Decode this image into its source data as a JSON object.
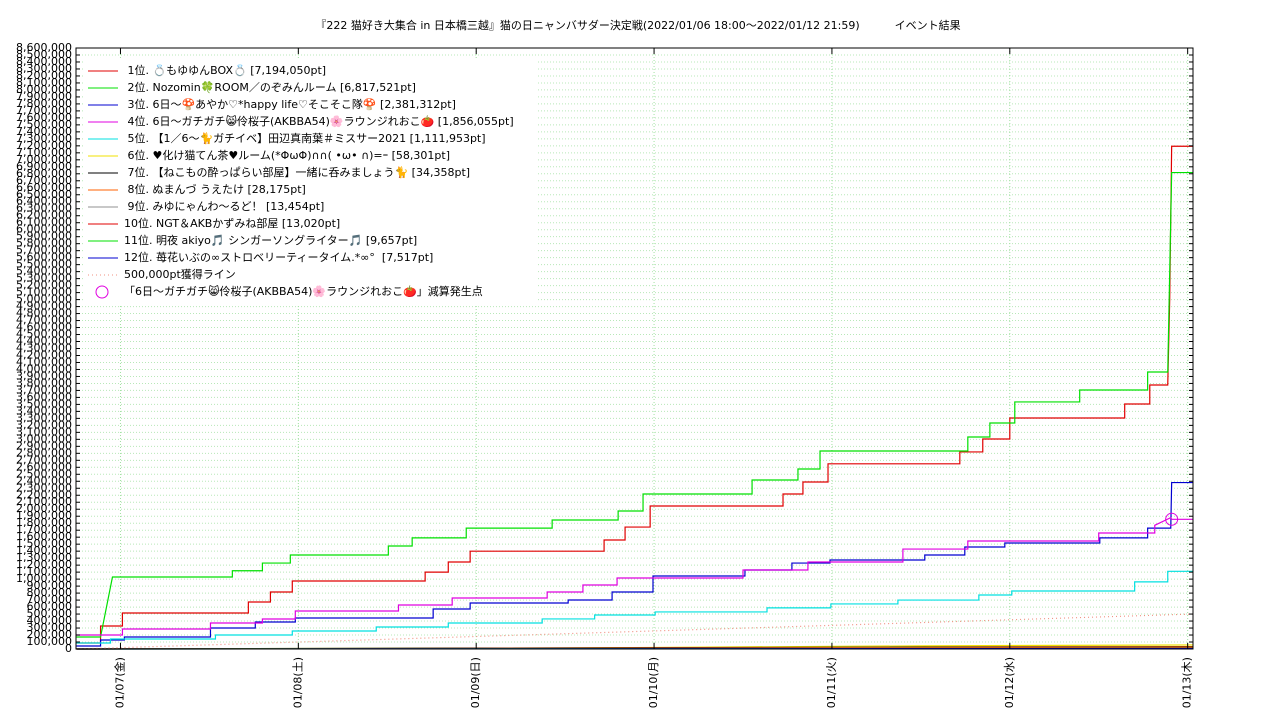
{
  "chart_data": {
    "type": "line",
    "title": "『222 猫好き大集合 in 日本橋三越』猫の日ニャンバサダー決定戦(2022/01/06 18:00～2022/01/12 21:59)          イベント結果",
    "xlim": [
      6.75,
      13.03
    ],
    "xticks": [
      {
        "value": 7,
        "label": "01/07(金)"
      },
      {
        "value": 8,
        "label": "01/08(土)"
      },
      {
        "value": 9,
        "label": "01/09(日)"
      },
      {
        "value": 10,
        "label": "01/10(月)"
      },
      {
        "value": 11,
        "label": "01/11(火)"
      },
      {
        "value": 12,
        "label": "01/12(水)"
      },
      {
        "value": 13,
        "label": "01/13(木)"
      }
    ],
    "ylim": [
      0,
      8600000
    ],
    "yticks": [
      0,
      {
        "value": 100000,
        "label": "100,000"
      },
      {
        "value": 200000,
        "label": "200,000"
      },
      {
        "value": 300000,
        "label": "300,000"
      },
      {
        "value": 400000,
        "label": "400,000"
      },
      {
        "value": 500000,
        "label": "500,000"
      },
      {
        "value": 600000,
        "label": "600,000"
      },
      {
        "value": 700000,
        "label": "700,000"
      },
      {
        "value": 800000,
        "label": "800,000"
      },
      {
        "value": 900000,
        "label": "900,000"
      },
      {
        "value": 1000000,
        "label": "1,000,000"
      },
      {
        "value": 1100000,
        "label": "1,100,000"
      },
      {
        "value": 1200000,
        "label": "1,200,000"
      },
      {
        "value": 1300000,
        "label": "1,300,000"
      },
      {
        "value": 1400000,
        "label": "1,400,000"
      },
      {
        "value": 1500000,
        "label": "1,500,000"
      },
      {
        "value": 1600000,
        "label": "1,600,000"
      },
      {
        "value": 1700000,
        "label": "1,700,000"
      },
      {
        "value": 1800000,
        "label": "1,800,000"
      },
      {
        "value": 1900000,
        "label": "1,900,000"
      },
      {
        "value": 2000000,
        "label": "2,000,000"
      },
      {
        "value": 2100000,
        "label": "2,100,000"
      },
      {
        "value": 2200000,
        "label": "2,200,000"
      },
      {
        "value": 2300000,
        "label": "2,300,000"
      },
      {
        "value": 2400000,
        "label": "2,400,000"
      },
      {
        "value": 2500000,
        "label": "2,500,000"
      },
      {
        "value": 2600000,
        "label": "2,600,000"
      },
      {
        "value": 2700000,
        "label": "2,700,000"
      },
      {
        "value": 2800000,
        "label": "2,800,000"
      },
      {
        "value": 2900000,
        "label": "2,900,000"
      },
      {
        "value": 3000000,
        "label": "3,000,000"
      },
      {
        "value": 3100000,
        "label": "3,100,000"
      },
      {
        "value": 3200000,
        "label": "3,200,000"
      },
      {
        "value": 3300000,
        "label": "3,300,000"
      },
      {
        "value": 3400000,
        "label": "3,400,000"
      },
      {
        "value": 3500000,
        "label": "3,500,000"
      },
      {
        "value": 3600000,
        "label": "3,600,000"
      },
      {
        "value": 3700000,
        "label": "3,700,000"
      },
      {
        "value": 3800000,
        "label": "3,800,000"
      },
      {
        "value": 3900000,
        "label": "3,900,000"
      },
      {
        "value": 4000000,
        "label": "4,000,000"
      },
      {
        "value": 4100000,
        "label": "4,100,000"
      },
      {
        "value": 4200000,
        "label": "4,200,000"
      },
      {
        "value": 4300000,
        "label": "4,300,000"
      },
      {
        "value": 4400000,
        "label": "4,400,000"
      },
      {
        "value": 4500000,
        "label": "4,500,000"
      },
      {
        "value": 4600000,
        "label": "4,600,000"
      },
      {
        "value": 4700000,
        "label": "4,700,000"
      },
      {
        "value": 4800000,
        "label": "4,800,000"
      },
      {
        "value": 4900000,
        "label": "4,900,000"
      },
      {
        "value": 5000000,
        "label": "5,000,000"
      },
      {
        "value": 5100000,
        "label": "5,100,000"
      },
      {
        "value": 5200000,
        "label": "5,200,000"
      },
      {
        "value": 5300000,
        "label": "5,300,000"
      },
      {
        "value": 5400000,
        "label": "5,400,000"
      },
      {
        "value": 5500000,
        "label": "5,500,000"
      },
      {
        "value": 5600000,
        "label": "5,600,000"
      },
      {
        "value": 5700000,
        "label": "5,700,000"
      },
      {
        "value": 5800000,
        "label": "5,800,000"
      },
      {
        "value": 5900000,
        "label": "5,900,000"
      },
      {
        "value": 6000000,
        "label": "6,000,000"
      },
      {
        "value": 6100000,
        "label": "6,100,000"
      },
      {
        "value": 6200000,
        "label": "6,200,000"
      },
      {
        "value": 6300000,
        "label": "6,300,000"
      },
      {
        "value": 6400000,
        "label": "6,400,000"
      },
      {
        "value": 6500000,
        "label": "6,500,000"
      },
      {
        "value": 6600000,
        "label": "6,600,000"
      },
      {
        "value": 6700000,
        "label": "6,700,000"
      },
      {
        "value": 6800000,
        "label": "6,800,000"
      },
      {
        "value": 6900000,
        "label": "6,900,000"
      },
      {
        "value": 7000000,
        "label": "7,000,000"
      },
      {
        "value": 7100000,
        "label": "7,100,000"
      },
      {
        "value": 7200000,
        "label": "7,200,000"
      },
      {
        "value": 7300000,
        "label": "7,300,000"
      },
      {
        "value": 7400000,
        "label": "7,400,000"
      },
      {
        "value": 7500000,
        "label": "7,500,000"
      },
      {
        "value": 7600000,
        "label": "7,600,000"
      },
      {
        "value": 7700000,
        "label": "7,700,000"
      },
      {
        "value": 7800000,
        "label": "7,800,000"
      },
      {
        "value": 7900000,
        "label": "7,900,000"
      },
      {
        "value": 8000000,
        "label": "8,000,000"
      },
      {
        "value": 8100000,
        "label": "8,100,000"
      },
      {
        "value": 8200000,
        "label": "8,200,000"
      },
      {
        "value": 8300000,
        "label": "8,300,000"
      },
      {
        "value": 8400000,
        "label": "8,400,000"
      },
      {
        "value": 8500000,
        "label": "8,500,000"
      },
      {
        "value": 8600000,
        "label": "8,600,000"
      }
    ],
    "grid": true,
    "legend": "top-left",
    "series": [
      {
        "name": " 1位. 💍もゆゆんBOX💍 [7,194,050pt]",
        "color": "#e00000",
        "x": [
          6.753,
          6.888,
          6.888,
          7.011,
          7.011,
          7.719,
          7.719,
          7.843,
          7.843,
          7.966,
          7.966,
          8.713,
          8.713,
          8.843,
          8.843,
          8.966,
          8.966,
          9.719,
          9.719,
          9.837,
          9.837,
          9.978,
          9.978,
          10.725,
          10.725,
          10.837,
          10.837,
          10.978,
          10.978,
          11.719,
          11.719,
          11.848,
          11.848,
          12.0,
          12.0,
          12.646,
          12.646,
          12.787,
          12.787,
          12.888,
          12.899,
          12.91,
          13.028
        ],
        "values": [
          86000,
          86000,
          329000,
          329000,
          515000,
          515000,
          673000,
          673000,
          816000,
          816000,
          973000,
          973000,
          1100000,
          1100000,
          1245000,
          1245000,
          1400000,
          1400000,
          1560000,
          1560000,
          1745000,
          1745000,
          2046000,
          2046000,
          2218000,
          2218000,
          2390000,
          2390000,
          2650000,
          2650000,
          2820000,
          2820000,
          3005000,
          3005000,
          3306000,
          3306000,
          3506000,
          3506000,
          3778000,
          3778000,
          4994000,
          7194050,
          7194050
        ]
      },
      {
        "name": " 2位. Nozomin🍀ROOM／のぞみんルーム [6,817,521pt]",
        "color": "#00e000",
        "x": [
          6.753,
          6.888,
          6.955,
          7.629,
          7.629,
          7.798,
          7.798,
          7.955,
          7.955,
          8.506,
          8.506,
          8.64,
          8.64,
          8.944,
          8.944,
          9.427,
          9.427,
          9.798,
          9.798,
          9.938,
          9.938,
          10.551,
          10.551,
          10.809,
          10.809,
          10.933,
          10.933,
          11.764,
          11.764,
          11.888,
          11.888,
          12.028,
          12.028,
          12.393,
          12.393,
          12.775,
          12.775,
          12.888,
          12.91,
          13.028
        ],
        "values": [
          172000,
          172000,
          1030000,
          1030000,
          1120000,
          1120000,
          1230000,
          1230000,
          1345000,
          1345000,
          1474000,
          1474000,
          1590000,
          1590000,
          1730000,
          1730000,
          1846000,
          1846000,
          1975000,
          1975000,
          2218000,
          2218000,
          2418000,
          2418000,
          2576000,
          2576000,
          2833000,
          2833000,
          3034000,
          3034000,
          3234000,
          3234000,
          3535000,
          3535000,
          3706000,
          3706000,
          3964000,
          3964000,
          6817521,
          6817521
        ]
      },
      {
        "name": " 3位. 6日〜🍄あやか♡*happy life♡そこそこ隊🍄 [2,381,312pt]",
        "color": "#0000d0",
        "x": [
          6.753,
          6.888,
          6.888,
          7.022,
          7.022,
          7.506,
          7.506,
          7.758,
          7.758,
          7.983,
          7.983,
          8.758,
          8.758,
          8.966,
          8.966,
          9.517,
          9.517,
          9.764,
          9.764,
          9.994,
          9.994,
          10.511,
          10.511,
          10.775,
          10.775,
          10.989,
          10.989,
          11.522,
          11.522,
          11.747,
          11.747,
          11.972,
          11.972,
          12.506,
          12.506,
          12.775,
          12.775,
          12.905,
          12.91,
          13.028
        ],
        "values": [
          43000,
          43000,
          129000,
          129000,
          172000,
          172000,
          300000,
          300000,
          386000,
          386000,
          444000,
          444000,
          572000,
          572000,
          658000,
          658000,
          701000,
          701000,
          816000,
          816000,
          1045000,
          1045000,
          1130000,
          1130000,
          1230000,
          1230000,
          1274000,
          1274000,
          1345000,
          1345000,
          1460000,
          1460000,
          1517000,
          1517000,
          1590000,
          1590000,
          1730000,
          1730000,
          2381312,
          2381312
        ]
      },
      {
        "name": " 4位. 6日〜ガチガチ😸伶桜子(AKBBA54)🌸ラウンジれおこ🍅 [1,856,055pt]",
        "color": "#e000e0",
        "x": [
          6.753,
          7.011,
          7.011,
          7.506,
          7.506,
          7.798,
          7.798,
          7.983,
          7.983,
          8.563,
          8.563,
          8.865,
          8.865,
          9.399,
          9.399,
          9.6,
          9.6,
          9.792,
          9.792,
          10.5,
          10.5,
          10.865,
          10.865,
          11.399,
          11.399,
          11.764,
          11.764,
          12.5,
          12.5,
          12.815,
          12.815,
          12.905,
          12.91,
          13.028
        ],
        "values": [
          200000,
          200000,
          286000,
          286000,
          372000,
          372000,
          429000,
          429000,
          544000,
          544000,
          630000,
          630000,
          730000,
          730000,
          816000,
          816000,
          916000,
          916000,
          1016000,
          1016000,
          1130000,
          1130000,
          1245000,
          1245000,
          1430000,
          1430000,
          1545000,
          1545000,
          1660000,
          1660000,
          1770000,
          1880000,
          1856055,
          1856055
        ]
      },
      {
        "name": " 5位. 【1／6〜🐈ガチイベ】田辺真南葉＃ミスサー2021 [1,111,953pt]",
        "color": "#00e0e0",
        "x": [
          6.753,
          6.944,
          6.944,
          7.534,
          7.534,
          7.966,
          7.966,
          8.438,
          8.438,
          8.843,
          8.843,
          9.371,
          9.371,
          9.666,
          9.666,
          10.006,
          10.006,
          10.635,
          10.635,
          10.994,
          10.994,
          11.371,
          11.371,
          11.826,
          11.826,
          12.011,
          12.011,
          12.702,
          12.702,
          12.888,
          12.888,
          13.028
        ],
        "values": [
          86000,
          86000,
          143000,
          143000,
          200000,
          200000,
          258000,
          258000,
          315000,
          315000,
          372000,
          372000,
          430000,
          430000,
          486000,
          486000,
          530000,
          530000,
          588000,
          588000,
          645000,
          645000,
          700000,
          700000,
          773000,
          773000,
          830000,
          830000,
          960000,
          960000,
          1111953,
          1111953
        ]
      },
      {
        "name": " 6位. ♥化け猫てん茶♥ルーム(*ΦωΦ)∩∩( •ω• ∩)=ｰ [58,301pt]",
        "color": "#f0e000",
        "x": [
          6.753,
          9.5,
          11.5,
          13.028
        ],
        "values": [
          0,
          15000,
          45000,
          58301
        ]
      },
      {
        "name": " 7位. 【ねこもの酔っぱらい部屋】一緒に呑みましょう🐈 [34,358pt]",
        "color": "#000000",
        "x": [
          6.753,
          9.0,
          12.0,
          13.028
        ],
        "values": [
          0,
          12000,
          30000,
          34358
        ]
      },
      {
        "name": " 8位. ぬまんづ うえたけ [28,175pt]",
        "color": "#ff6000",
        "x": [
          6.753,
          9.5,
          12.0,
          13.028
        ],
        "values": [
          0,
          10000,
          25000,
          28175
        ]
      },
      {
        "name": " 9位. みゆにゃんわ〜るど！ [13,454pt]",
        "color": "#909090",
        "x": [
          6.753,
          10.0,
          13.028
        ],
        "values": [
          0,
          8000,
          13454
        ]
      },
      {
        "name": "10位. NGT＆AKBかずみね部屋 [13,020pt]",
        "color": "#e00000",
        "x": [
          6.753,
          10.0,
          13.028
        ],
        "values": [
          0,
          7000,
          13020
        ]
      },
      {
        "name": "11位. 明夜 akiyo🎵 シンガーソングライター🎵 [9,657pt]",
        "color": "#00e000",
        "x": [
          6.753,
          10.0,
          13.028
        ],
        "values": [
          0,
          5000,
          9657
        ]
      },
      {
        "name": "12位. 苺花いぶの∞ストロベリーティータイム.*∞°  [7,517pt]",
        "color": "#0000d0",
        "x": [
          6.753,
          10.0,
          13.028
        ],
        "values": [
          0,
          4000,
          7517
        ]
      },
      {
        "name": "500,000pt獲得ライン",
        "color": "#f09080",
        "dash": true,
        "x": [
          6.753,
          13.028
        ],
        "values": [
          0,
          500000
        ]
      },
      {
        "name": "「6日〜ガチガチ😸伶桜子(AKBBA54)🌸ラウンジれおこ🍅」減算発生点",
        "color": "#e000e0",
        "marker": "circle",
        "x": [
          12.91
        ],
        "values": [
          1856055
        ]
      }
    ]
  }
}
